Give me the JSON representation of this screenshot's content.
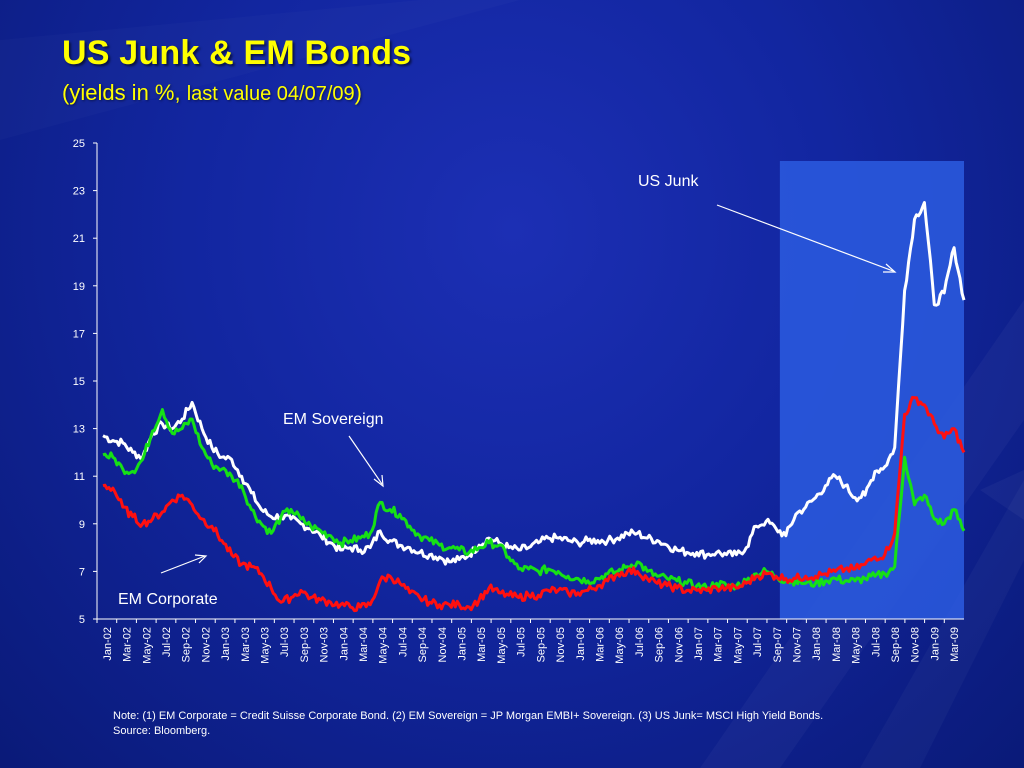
{
  "slide": {
    "title": "US Junk & EM Bonds",
    "subtitle_a": "(yields in %, ",
    "subtitle_b": "last value 04/07/09",
    "subtitle_c": ")",
    "note_line1": "Note: (1) EM Corporate  = Credit Suisse Corporate Bond. (2) EM Sovereign = JP Morgan EMBI+ Sovereign. (3) US Junk= MSCI High Yield Bonds.",
    "note_line2": "Source: Bloomberg."
  },
  "chart_data": {
    "type": "line",
    "ylim": [
      5,
      25
    ],
    "yticks": [
      5,
      7,
      9,
      11,
      13,
      15,
      17,
      19,
      21,
      23,
      25
    ],
    "x_tick_labels": [
      "Jan-02",
      "Mar-02",
      "May-02",
      "Jul-02",
      "Sep-02",
      "Nov-02",
      "Jan-03",
      "Mar-03",
      "May-03",
      "Jul-03",
      "Sep-03",
      "Nov-03",
      "Jan-04",
      "Mar-04",
      "May-04",
      "Jul-04",
      "Sep-04",
      "Nov-04",
      "Jan-05",
      "Mar-05",
      "May-05",
      "Jul-05",
      "Sep-05",
      "Nov-05",
      "Jan-06",
      "Mar-06",
      "May-06",
      "Jul-06",
      "Sep-06",
      "Nov-06",
      "Jan-07",
      "Mar-07",
      "May-07",
      "Jul-07",
      "Sep-07",
      "Nov-07",
      "Jan-08",
      "Mar-08",
      "May-08",
      "Jul-08",
      "Sep-08",
      "Nov-08",
      "Jan-09",
      "Mar-09"
    ],
    "x_range": [
      "2002-01",
      "2009-04"
    ],
    "highlight": {
      "from": "2007-10",
      "to": "2009-04",
      "color": "#2b5ce0"
    },
    "annotations": [
      {
        "text": "US Junk",
        "series": "US Junk"
      },
      {
        "text": "EM Sovereign",
        "series": "EM Sovereign"
      },
      {
        "text": "EM Corporate",
        "series": "EM Corporate"
      }
    ],
    "series": [
      {
        "name": "US Junk",
        "color": "#ffffff",
        "points": [
          [
            "2002-01",
            12.7
          ],
          [
            "2002-02",
            12.5
          ],
          [
            "2002-03",
            12.4
          ],
          [
            "2002-04",
            12.0
          ],
          [
            "2002-05",
            11.8
          ],
          [
            "2002-06",
            12.8
          ],
          [
            "2002-07",
            13.2
          ],
          [
            "2002-08",
            13.0
          ],
          [
            "2002-09",
            13.4
          ],
          [
            "2002-10",
            14.1
          ],
          [
            "2002-11",
            13.0
          ],
          [
            "2002-12",
            12.2
          ],
          [
            "2003-01",
            11.8
          ],
          [
            "2003-02",
            11.7
          ],
          [
            "2003-03",
            11.0
          ],
          [
            "2003-04",
            10.3
          ],
          [
            "2003-05",
            9.6
          ],
          [
            "2003-06",
            9.3
          ],
          [
            "2003-07",
            9.3
          ],
          [
            "2003-08",
            9.2
          ],
          [
            "2003-09",
            9.0
          ],
          [
            "2003-10",
            8.8
          ],
          [
            "2003-11",
            8.5
          ],
          [
            "2003-12",
            8.2
          ],
          [
            "2004-01",
            7.9
          ],
          [
            "2004-02",
            8.0
          ],
          [
            "2004-03",
            7.9
          ],
          [
            "2004-04",
            8.0
          ],
          [
            "2004-05",
            8.7
          ],
          [
            "2004-06",
            8.3
          ],
          [
            "2004-07",
            8.1
          ],
          [
            "2004-08",
            8.0
          ],
          [
            "2004-09",
            7.8
          ],
          [
            "2004-10",
            7.7
          ],
          [
            "2004-11",
            7.6
          ],
          [
            "2004-12",
            7.4
          ],
          [
            "2005-01",
            7.5
          ],
          [
            "2005-02",
            7.7
          ],
          [
            "2005-03",
            8.1
          ],
          [
            "2005-04",
            8.4
          ],
          [
            "2005-05",
            8.2
          ],
          [
            "2005-06",
            8.0
          ],
          [
            "2005-07",
            7.9
          ],
          [
            "2005-08",
            8.0
          ],
          [
            "2005-09",
            8.2
          ],
          [
            "2005-10",
            8.4
          ],
          [
            "2005-11",
            8.4
          ],
          [
            "2005-12",
            8.3
          ],
          [
            "2006-01",
            8.2
          ],
          [
            "2006-02",
            8.3
          ],
          [
            "2006-03",
            8.3
          ],
          [
            "2006-04",
            8.3
          ],
          [
            "2006-05",
            8.4
          ],
          [
            "2006-06",
            8.6
          ],
          [
            "2006-07",
            8.6
          ],
          [
            "2006-08",
            8.4
          ],
          [
            "2006-09",
            8.3
          ],
          [
            "2006-10",
            8.1
          ],
          [
            "2006-11",
            7.9
          ],
          [
            "2006-12",
            7.8
          ],
          [
            "2007-01",
            7.8
          ],
          [
            "2007-02",
            7.7
          ],
          [
            "2007-03",
            7.8
          ],
          [
            "2007-04",
            7.7
          ],
          [
            "2007-05",
            7.7
          ],
          [
            "2007-06",
            8.0
          ],
          [
            "2007-07",
            8.9
          ],
          [
            "2007-08",
            9.1
          ],
          [
            "2007-09",
            8.8
          ],
          [
            "2007-10",
            8.5
          ],
          [
            "2007-11",
            9.4
          ],
          [
            "2007-12",
            9.7
          ],
          [
            "2008-01",
            10.1
          ],
          [
            "2008-02",
            10.6
          ],
          [
            "2008-03",
            11.0
          ],
          [
            "2008-04",
            10.6
          ],
          [
            "2008-05",
            10.1
          ],
          [
            "2008-06",
            10.2
          ],
          [
            "2008-07",
            11.2
          ],
          [
            "2008-08",
            11.4
          ],
          [
            "2008-09",
            12.2
          ],
          [
            "2008-10",
            18.8
          ],
          [
            "2008-11",
            21.8
          ],
          [
            "2008-12",
            22.5
          ],
          [
            "2009-01",
            18.2
          ],
          [
            "2009-02",
            18.7
          ],
          [
            "2009-03",
            20.6
          ],
          [
            "2009-04",
            18.4
          ]
        ]
      },
      {
        "name": "EM Sovereign",
        "color": "#16e016",
        "points": [
          [
            "2002-01",
            11.9
          ],
          [
            "2002-02",
            11.8
          ],
          [
            "2002-03",
            11.3
          ],
          [
            "2002-04",
            11.2
          ],
          [
            "2002-05",
            11.7
          ],
          [
            "2002-06",
            12.9
          ],
          [
            "2002-07",
            13.8
          ],
          [
            "2002-08",
            12.8
          ],
          [
            "2002-09",
            13.0
          ],
          [
            "2002-10",
            13.4
          ],
          [
            "2002-11",
            12.2
          ],
          [
            "2002-12",
            11.5
          ],
          [
            "2003-01",
            11.3
          ],
          [
            "2003-02",
            11.0
          ],
          [
            "2003-03",
            10.6
          ],
          [
            "2003-04",
            9.6
          ],
          [
            "2003-05",
            9.0
          ],
          [
            "2003-06",
            8.6
          ],
          [
            "2003-07",
            9.3
          ],
          [
            "2003-08",
            9.6
          ],
          [
            "2003-09",
            9.2
          ],
          [
            "2003-10",
            8.9
          ],
          [
            "2003-11",
            8.7
          ],
          [
            "2003-12",
            8.5
          ],
          [
            "2004-01",
            8.2
          ],
          [
            "2004-02",
            8.3
          ],
          [
            "2004-03",
            8.4
          ],
          [
            "2004-04",
            8.6
          ],
          [
            "2004-05",
            9.9
          ],
          [
            "2004-06",
            9.6
          ],
          [
            "2004-07",
            9.4
          ],
          [
            "2004-08",
            8.9
          ],
          [
            "2004-09",
            8.5
          ],
          [
            "2004-10",
            8.3
          ],
          [
            "2004-11",
            8.1
          ],
          [
            "2004-12",
            8.0
          ],
          [
            "2005-01",
            7.9
          ],
          [
            "2005-02",
            7.8
          ],
          [
            "2005-03",
            8.0
          ],
          [
            "2005-04",
            8.2
          ],
          [
            "2005-05",
            8.1
          ],
          [
            "2005-06",
            7.6
          ],
          [
            "2005-07",
            7.1
          ],
          [
            "2005-08",
            7.1
          ],
          [
            "2005-09",
            7.0
          ],
          [
            "2005-10",
            7.1
          ],
          [
            "2005-11",
            7.0
          ],
          [
            "2005-12",
            6.8
          ],
          [
            "2006-01",
            6.7
          ],
          [
            "2006-02",
            6.6
          ],
          [
            "2006-03",
            6.7
          ],
          [
            "2006-04",
            6.9
          ],
          [
            "2006-05",
            7.0
          ],
          [
            "2006-06",
            7.2
          ],
          [
            "2006-07",
            7.4
          ],
          [
            "2006-08",
            7.0
          ],
          [
            "2006-09",
            6.8
          ],
          [
            "2006-10",
            6.7
          ],
          [
            "2006-11",
            6.6
          ],
          [
            "2006-12",
            6.5
          ],
          [
            "2007-01",
            6.4
          ],
          [
            "2007-02",
            6.3
          ],
          [
            "2007-03",
            6.5
          ],
          [
            "2007-04",
            6.4
          ],
          [
            "2007-05",
            6.4
          ],
          [
            "2007-06",
            6.6
          ],
          [
            "2007-07",
            6.9
          ],
          [
            "2007-08",
            7.0
          ],
          [
            "2007-09",
            6.8
          ],
          [
            "2007-10",
            6.6
          ],
          [
            "2007-11",
            6.6
          ],
          [
            "2007-12",
            6.5
          ],
          [
            "2008-01",
            6.5
          ],
          [
            "2008-02",
            6.6
          ],
          [
            "2008-03",
            6.7
          ],
          [
            "2008-04",
            6.6
          ],
          [
            "2008-05",
            6.6
          ],
          [
            "2008-06",
            6.7
          ],
          [
            "2008-07",
            6.8
          ],
          [
            "2008-08",
            6.9
          ],
          [
            "2008-09",
            7.2
          ],
          [
            "2008-10",
            11.8
          ],
          [
            "2008-11",
            9.8
          ],
          [
            "2008-12",
            10.2
          ],
          [
            "2009-01",
            9.2
          ],
          [
            "2009-02",
            9.0
          ],
          [
            "2009-03",
            9.6
          ],
          [
            "2009-04",
            8.7
          ]
        ]
      },
      {
        "name": "EM Corporate",
        "color": "#ff1010",
        "points": [
          [
            "2002-01",
            10.6
          ],
          [
            "2002-02",
            10.5
          ],
          [
            "2002-03",
            9.7
          ],
          [
            "2002-04",
            9.3
          ],
          [
            "2002-05",
            9.0
          ],
          [
            "2002-06",
            9.2
          ],
          [
            "2002-07",
            9.5
          ],
          [
            "2002-08",
            10.0
          ],
          [
            "2002-09",
            10.2
          ],
          [
            "2002-10",
            9.8
          ],
          [
            "2002-11",
            9.2
          ],
          [
            "2002-12",
            8.9
          ],
          [
            "2003-01",
            8.3
          ],
          [
            "2003-02",
            7.7
          ],
          [
            "2003-03",
            7.3
          ],
          [
            "2003-04",
            7.2
          ],
          [
            "2003-05",
            6.9
          ],
          [
            "2003-06",
            6.3
          ],
          [
            "2003-07",
            5.7
          ],
          [
            "2003-08",
            5.9
          ],
          [
            "2003-09",
            6.2
          ],
          [
            "2003-10",
            5.9
          ],
          [
            "2003-11",
            5.8
          ],
          [
            "2003-12",
            5.7
          ],
          [
            "2004-01",
            5.6
          ],
          [
            "2004-02",
            5.5
          ],
          [
            "2004-03",
            5.5
          ],
          [
            "2004-04",
            5.6
          ],
          [
            "2004-05",
            6.6
          ],
          [
            "2004-06",
            6.8
          ],
          [
            "2004-07",
            6.5
          ],
          [
            "2004-08",
            6.1
          ],
          [
            "2004-09",
            5.9
          ],
          [
            "2004-10",
            5.7
          ],
          [
            "2004-11",
            5.6
          ],
          [
            "2004-12",
            5.6
          ],
          [
            "2005-01",
            5.6
          ],
          [
            "2005-02",
            5.5
          ],
          [
            "2005-03",
            5.8
          ],
          [
            "2005-04",
            6.3
          ],
          [
            "2005-05",
            6.1
          ],
          [
            "2005-06",
            6.0
          ],
          [
            "2005-07",
            5.9
          ],
          [
            "2005-08",
            6.0
          ],
          [
            "2005-09",
            6.0
          ],
          [
            "2005-10",
            6.2
          ],
          [
            "2005-11",
            6.2
          ],
          [
            "2005-12",
            6.1
          ],
          [
            "2006-01",
            6.1
          ],
          [
            "2006-02",
            6.2
          ],
          [
            "2006-03",
            6.4
          ],
          [
            "2006-04",
            6.6
          ],
          [
            "2006-05",
            6.9
          ],
          [
            "2006-06",
            7.0
          ],
          [
            "2006-07",
            7.0
          ],
          [
            "2006-08",
            6.7
          ],
          [
            "2006-09",
            6.5
          ],
          [
            "2006-10",
            6.4
          ],
          [
            "2006-11",
            6.3
          ],
          [
            "2006-12",
            6.2
          ],
          [
            "2007-01",
            6.2
          ],
          [
            "2007-02",
            6.2
          ],
          [
            "2007-03",
            6.3
          ],
          [
            "2007-04",
            6.3
          ],
          [
            "2007-05",
            6.3
          ],
          [
            "2007-06",
            6.5
          ],
          [
            "2007-07",
            6.8
          ],
          [
            "2007-08",
            6.9
          ],
          [
            "2007-09",
            6.8
          ],
          [
            "2007-10",
            6.7
          ],
          [
            "2007-11",
            6.7
          ],
          [
            "2007-12",
            6.8
          ],
          [
            "2008-01",
            6.8
          ],
          [
            "2008-02",
            6.9
          ],
          [
            "2008-03",
            7.0
          ],
          [
            "2008-04",
            7.1
          ],
          [
            "2008-05",
            7.1
          ],
          [
            "2008-06",
            7.3
          ],
          [
            "2008-07",
            7.6
          ],
          [
            "2008-08",
            7.7
          ],
          [
            "2008-09",
            8.6
          ],
          [
            "2008-10",
            13.6
          ],
          [
            "2008-11",
            14.3
          ],
          [
            "2008-12",
            14.0
          ],
          [
            "2009-01",
            13.2
          ],
          [
            "2009-02",
            12.6
          ],
          [
            "2009-03",
            13.0
          ],
          [
            "2009-04",
            12.0
          ]
        ]
      }
    ]
  }
}
